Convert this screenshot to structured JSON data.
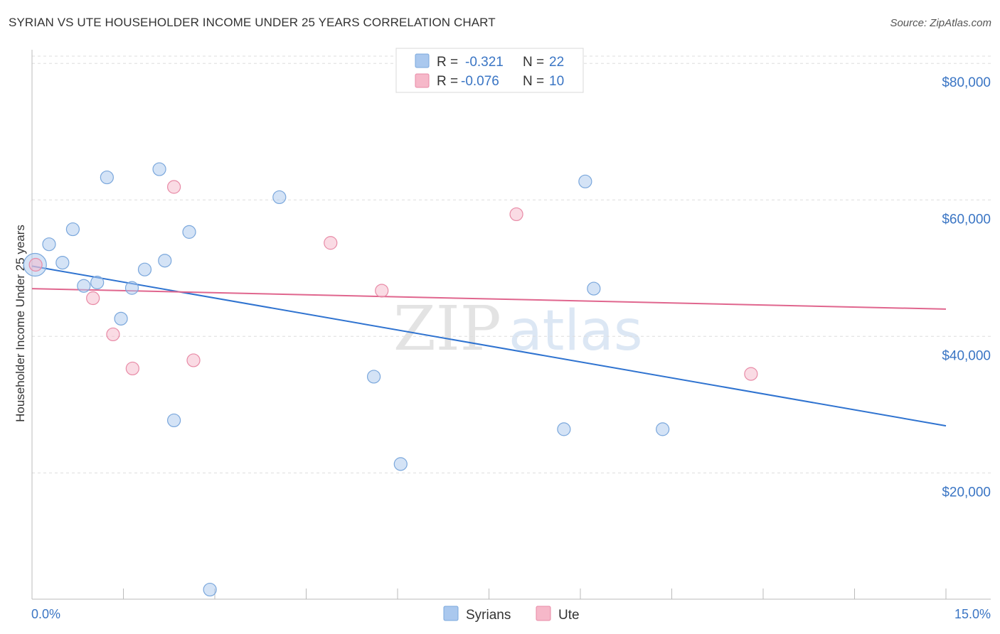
{
  "title": "SYRIAN VS UTE HOUSEHOLDER INCOME UNDER 25 YEARS CORRELATION CHART",
  "source": "Source: ZipAtlas.com",
  "watermark": {
    "zip": "ZIP",
    "atlas": "atlas"
  },
  "legend": {
    "rows": [
      {
        "r_label": "R = ",
        "r_value": "-0.321",
        "n_label": "N = ",
        "n_value": "22",
        "color": "#aac8ee"
      },
      {
        "r_label": "R = ",
        "r_value": "-0.076",
        "n_label": "N = ",
        "n_value": "10",
        "color": "#f6b8c9"
      }
    ]
  },
  "bottom_legend": [
    {
      "label": "Syrians",
      "color": "#aac8ee"
    },
    {
      "label": "Ute",
      "color": "#f6b8c9"
    }
  ],
  "chart_data": {
    "type": "scatter",
    "title": "SYRIAN VS UTE HOUSEHOLDER INCOME UNDER 25 YEARS CORRELATION CHART",
    "xlabel": "",
    "ylabel": "Householder Income Under 25 years",
    "xlim": [
      0,
      15
    ],
    "ylim": [
      1500,
      82000
    ],
    "x_tick_labels": [
      "0.0%",
      "15.0%"
    ],
    "y_ticks": [
      20000,
      40000,
      60000,
      80000
    ],
    "y_tick_labels": [
      "$20,000",
      "$40,000",
      "$60,000",
      "$80,000"
    ],
    "grid": true,
    "series": [
      {
        "name": "Syrians",
        "color": "#aac8ee",
        "stroke": "#7aa7dc",
        "points": [
          {
            "x": 0.05,
            "y": 50500,
            "big": true
          },
          {
            "x": 0.28,
            "y": 53500
          },
          {
            "x": 0.5,
            "y": 50800
          },
          {
            "x": 0.67,
            "y": 55700
          },
          {
            "x": 0.85,
            "y": 47400
          },
          {
            "x": 1.07,
            "y": 47900
          },
          {
            "x": 1.23,
            "y": 63300
          },
          {
            "x": 1.46,
            "y": 42600
          },
          {
            "x": 1.64,
            "y": 47100
          },
          {
            "x": 1.85,
            "y": 49800
          },
          {
            "x": 2.09,
            "y": 64500
          },
          {
            "x": 2.18,
            "y": 51100
          },
          {
            "x": 2.33,
            "y": 27700
          },
          {
            "x": 2.58,
            "y": 55300
          },
          {
            "x": 2.92,
            "y": 2900
          },
          {
            "x": 4.06,
            "y": 60400
          },
          {
            "x": 5.61,
            "y": 34100
          },
          {
            "x": 6.05,
            "y": 21300
          },
          {
            "x": 8.73,
            "y": 26400
          },
          {
            "x": 9.08,
            "y": 62700
          },
          {
            "x": 9.22,
            "y": 47000
          },
          {
            "x": 10.35,
            "y": 26400
          }
        ],
        "trend": {
          "x": [
            0,
            15
          ],
          "y": [
            50300,
            26900
          ]
        }
      },
      {
        "name": "Ute",
        "color": "#f6b8c9",
        "stroke": "#e88aa6",
        "points": [
          {
            "x": 0.06,
            "y": 50500
          },
          {
            "x": 1.0,
            "y": 45600
          },
          {
            "x": 1.33,
            "y": 40300
          },
          {
            "x": 1.65,
            "y": 35300
          },
          {
            "x": 2.33,
            "y": 61900
          },
          {
            "x": 2.65,
            "y": 36500
          },
          {
            "x": 4.9,
            "y": 53700
          },
          {
            "x": 5.74,
            "y": 46700
          },
          {
            "x": 7.95,
            "y": 57900
          },
          {
            "x": 11.8,
            "y": 34500
          }
        ],
        "trend": {
          "x": [
            0,
            15
          ],
          "y": [
            47000,
            44000
          ]
        }
      }
    ]
  }
}
